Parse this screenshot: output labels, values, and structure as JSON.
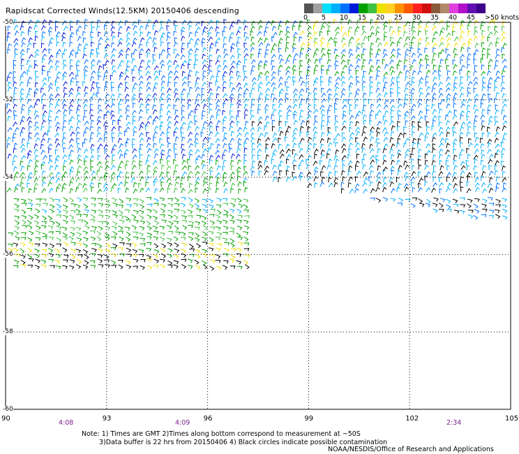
{
  "title": "Rapidscat Corrected Winds(12.5KM) 20150406 descending",
  "legend": {
    "colors": [
      "#555555",
      "#a0a0a0",
      "#00e0ff",
      "#00b0ff",
      "#0070ff",
      "#0018d8",
      "#00a000",
      "#40c040",
      "#f0e000",
      "#ffd020",
      "#ff9000",
      "#ff5a00",
      "#ff2020",
      "#d01010",
      "#8a5a3c",
      "#b08a6a",
      "#e040e0",
      "#b010c8",
      "#6010b0",
      "#3c008a"
    ],
    "labels": [
      "0",
      "5",
      "10",
      "15",
      "20",
      "25",
      "30",
      "35",
      "40",
      "45",
      ">50 knots"
    ]
  },
  "lat_labels": [
    "-50",
    "-52",
    "-54",
    "-56",
    "-58",
    "-60"
  ],
  "lon_labels": [
    "90",
    "93",
    "96",
    "99",
    "102",
    "105"
  ],
  "time_labels": [
    "4:08",
    "4:09",
    "2:34"
  ],
  "notes": [
    "Note: 1) Times are GMT 2)Times along bottom correspond to measurement at ~50S",
    "3)Data buffer is 22 hrs from 20150406 4) Black circles indicate possible contamination"
  ],
  "credit": "NOAA/NESDIS/Office of Research and Applications",
  "map_extent": {
    "lon_min": 90,
    "lon_max": 105,
    "lat_max": -50,
    "lat_min": -60
  }
}
